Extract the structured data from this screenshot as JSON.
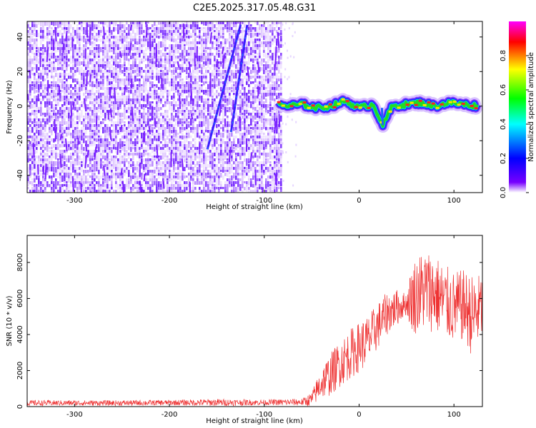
{
  "figure_title": "C2E5.2025.317.05.48.G31",
  "chart_data": [
    {
      "type": "heatmap",
      "title": "C2E5.2025.317.05.48.G31",
      "xlabel": "Height of straight line (km)",
      "ylabel": "Frequency (Hz)",
      "xlim": [
        -350,
        130
      ],
      "ylim": [
        -50,
        49
      ],
      "x_ticks": [
        -300,
        -200,
        -100,
        0,
        100
      ],
      "x_tick_labels": [
        "-300",
        "-200",
        "-100",
        "0",
        "100"
      ],
      "y_ticks": [
        -40,
        -20,
        0,
        20,
        40
      ],
      "y_tick_labels": [
        "-40",
        "-20",
        "0",
        "20",
        "40"
      ],
      "noise_region_x": [
        -350,
        -82
      ],
      "signal_track": {
        "x": [
          -85,
          -75,
          -60,
          -45,
          -30,
          -15,
          0,
          15,
          25,
          35,
          50,
          65,
          80,
          95,
          110,
          125
        ],
        "frequency": [
          1,
          0,
          1,
          -1,
          0,
          3,
          -1,
          1,
          -11,
          0,
          1,
          2,
          0,
          2,
          1,
          0
        ]
      },
      "diagonal_streaks": [
        {
          "x_start": -160,
          "y_start": -25,
          "x_end": -125,
          "y_end": 47
        },
        {
          "x_start": -135,
          "y_start": -15,
          "x_end": -118,
          "y_end": 47
        }
      ],
      "colorbar": {
        "label": "Normalized spectral amplitude",
        "range": [
          0,
          1
        ],
        "ticks": [
          0.0,
          0.2,
          0.4,
          0.6,
          0.8
        ],
        "tick_labels": [
          "0.0",
          "0.2",
          "0.4",
          "0.6",
          "0.8"
        ],
        "colors": [
          "#ffffff",
          "#7700ff",
          "#0000ff",
          "#00ffff",
          "#00ff00",
          "#ffff00",
          "#ff0000",
          "#ff00ff"
        ]
      }
    },
    {
      "type": "line",
      "xlabel": "Height of straight line (km)",
      "ylabel": "SNR (10 * v/v)",
      "xlim": [
        -350,
        130
      ],
      "ylim": [
        0,
        9500
      ],
      "x_ticks": [
        -300,
        -200,
        -100,
        0,
        100
      ],
      "x_tick_labels": [
        "-300",
        "-200",
        "-100",
        "0",
        "100"
      ],
      "y_ticks": [
        0,
        2000,
        4000,
        6000,
        8000
      ],
      "y_tick_labels": [
        "0",
        "2000",
        "4000",
        "6000",
        "8000"
      ],
      "series": [
        {
          "name": "SNR",
          "color": "#ee3333",
          "x": [
            -350,
            -300,
            -250,
            -200,
            -150,
            -100,
            -60,
            -50,
            -40,
            -30,
            -20,
            -10,
            0,
            10,
            20,
            30,
            40,
            50,
            55,
            60,
            70,
            80,
            90,
            100,
            110,
            120,
            130
          ],
          "y_center": [
            200,
            200,
            200,
            220,
            230,
            230,
            250,
            400,
            1300,
            1800,
            2400,
            2900,
            3300,
            3700,
            4500,
            5200,
            5500,
            5700,
            6000,
            6200,
            6500,
            6300,
            5800,
            5500,
            5600,
            5000,
            5600
          ],
          "y_spread": [
            150,
            150,
            150,
            150,
            200,
            150,
            200,
            400,
            900,
            1200,
            1300,
            1400,
            1400,
            1400,
            1300,
            1200,
            1000,
            600,
            1800,
            2200,
            2300,
            2200,
            2100,
            2000,
            2000,
            2300,
            1800
          ]
        }
      ]
    }
  ]
}
